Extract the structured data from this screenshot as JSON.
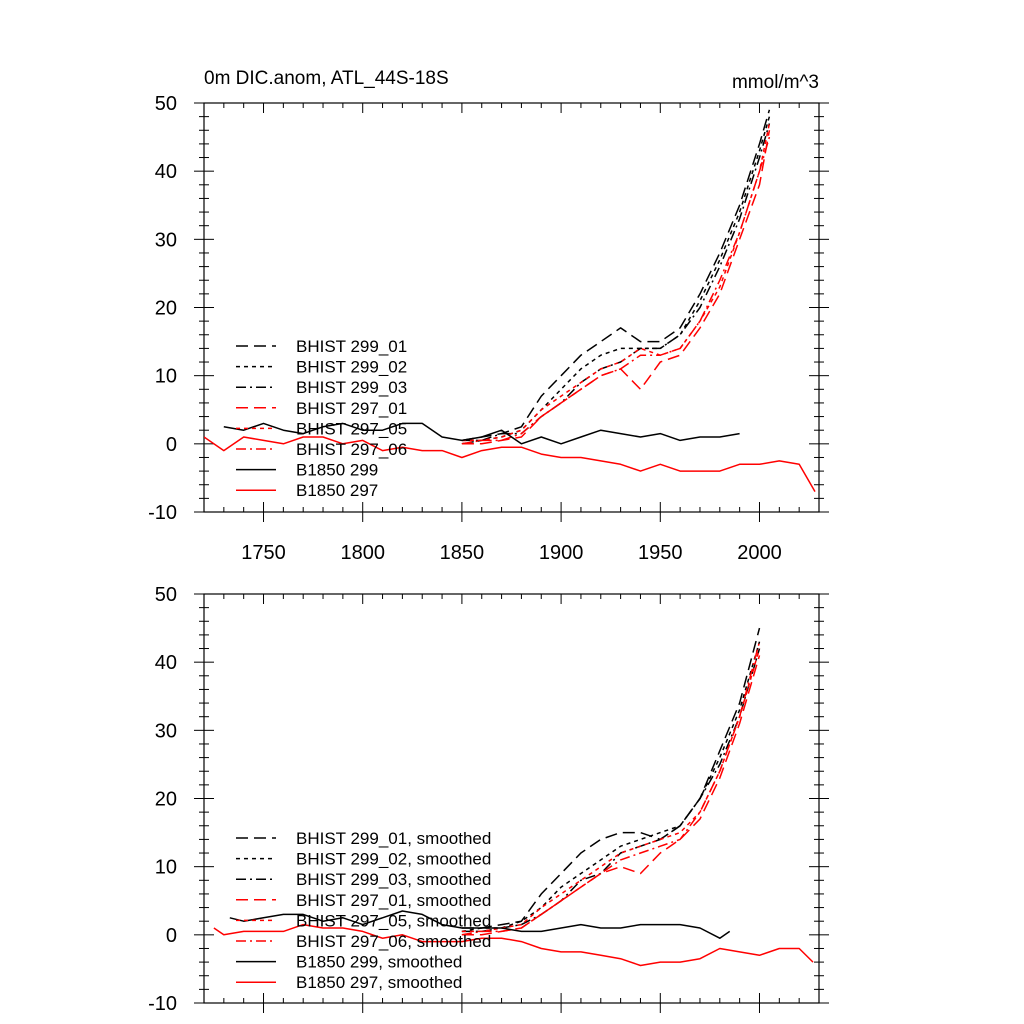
{
  "chart_data": [
    {
      "type": "line",
      "title": "0m DIC.anom, ATL_44S-18S",
      "units": "mmol/m^3",
      "xlim": [
        1720,
        2030
      ],
      "ylim": [
        -10,
        50
      ],
      "xticks": [
        1750,
        1800,
        1850,
        1900,
        1950,
        2000
      ],
      "yticks": [
        -10,
        0,
        10,
        20,
        30,
        40,
        50
      ],
      "x_tick_labels_shown": true,
      "legend_position": "middle-left",
      "series": [
        {
          "name": "BHIST 299_01",
          "color": "#000000",
          "dash": "long-dash",
          "x": [
            1850,
            1860,
            1870,
            1880,
            1890,
            1900,
            1910,
            1920,
            1930,
            1940,
            1950,
            1960,
            1970,
            1980,
            1990,
            2000,
            2005
          ],
          "y": [
            0.5,
            1,
            1.5,
            2.5,
            7,
            10,
            13,
            15,
            17,
            15,
            15,
            17,
            22,
            28,
            35,
            44,
            49
          ]
        },
        {
          "name": "BHIST 299_02",
          "color": "#000000",
          "dash": "short-dash",
          "x": [
            1850,
            1860,
            1870,
            1880,
            1890,
            1900,
            1910,
            1920,
            1930,
            1940,
            1950,
            1960,
            1970,
            1980,
            1990,
            2000,
            2005
          ],
          "y": [
            0,
            0.5,
            1,
            2,
            5,
            8,
            11,
            13,
            14,
            14,
            14,
            16,
            21,
            27,
            34,
            43,
            48
          ]
        },
        {
          "name": "BHIST 299_03",
          "color": "#000000",
          "dash": "dash-dot",
          "x": [
            1850,
            1860,
            1870,
            1880,
            1890,
            1900,
            1910,
            1920,
            1930,
            1940,
            1950,
            1960,
            1970,
            1980,
            1990,
            2000,
            2005
          ],
          "y": [
            0.5,
            0.5,
            1.5,
            1.5,
            4,
            6,
            9,
            11,
            12,
            14,
            14,
            16,
            20,
            26,
            33,
            42,
            47
          ]
        },
        {
          "name": "BHIST 297_01",
          "color": "#ff0000",
          "dash": "long-dash",
          "x": [
            1850,
            1860,
            1870,
            1880,
            1890,
            1900,
            1910,
            1920,
            1930,
            1940,
            1950,
            1960,
            1970,
            1980,
            1990,
            2000,
            2005
          ],
          "y": [
            0,
            0,
            0.5,
            1,
            4,
            6,
            8,
            10,
            11,
            8,
            12,
            13,
            17,
            22,
            30,
            38,
            46
          ]
        },
        {
          "name": "BHIST 297_05",
          "color": "#ff0000",
          "dash": "short-dash",
          "x": [
            1850,
            1860,
            1870,
            1880,
            1890,
            1900,
            1910,
            1920,
            1930,
            1940,
            1950,
            1960,
            1970,
            1980,
            1990,
            2000,
            2005
          ],
          "y": [
            0.5,
            0.5,
            1,
            2,
            5,
            7,
            9,
            11,
            12,
            14,
            13,
            14,
            18,
            23,
            31,
            40,
            47
          ]
        },
        {
          "name": "BHIST 297_06",
          "color": "#ff0000",
          "dash": "dash-dot",
          "x": [
            1850,
            1860,
            1870,
            1880,
            1890,
            1900,
            1910,
            1920,
            1930,
            1940,
            1950,
            1960,
            1970,
            1980,
            1990,
            2000,
            2005
          ],
          "y": [
            0,
            0.5,
            0.5,
            1.5,
            4,
            6,
            8,
            10,
            11,
            13,
            13,
            14,
            18,
            24,
            31,
            40,
            45
          ]
        },
        {
          "name": "B1850 299",
          "color": "#000000",
          "dash": "solid",
          "x": [
            1730,
            1740,
            1750,
            1760,
            1770,
            1780,
            1790,
            1800,
            1810,
            1820,
            1830,
            1840,
            1850,
            1860,
            1870,
            1880,
            1890,
            1900,
            1910,
            1920,
            1930,
            1940,
            1950,
            1960,
            1970,
            1980,
            1990
          ],
          "y": [
            2.5,
            2,
            3,
            2,
            1.5,
            2.5,
            3,
            2,
            2,
            3,
            3,
            1,
            0.5,
            1,
            2,
            0,
            1,
            0,
            1,
            2,
            1.5,
            1,
            1.5,
            0.5,
            1,
            1,
            1.5
          ]
        },
        {
          "name": "B1850 297",
          "color": "#ff0000",
          "dash": "solid",
          "x": [
            1720,
            1730,
            1740,
            1750,
            1760,
            1770,
            1780,
            1790,
            1800,
            1810,
            1820,
            1830,
            1840,
            1850,
            1860,
            1870,
            1880,
            1890,
            1900,
            1910,
            1920,
            1930,
            1940,
            1950,
            1960,
            1970,
            1980,
            1990,
            2000,
            2010,
            2020,
            2028
          ],
          "y": [
            1,
            -1,
            1,
            0.5,
            0,
            1,
            1,
            0,
            0.5,
            -1,
            -0.5,
            -1,
            -1,
            -2,
            -1,
            -0.5,
            -0.5,
            -1.5,
            -2,
            -2,
            -2.5,
            -3,
            -4,
            -3,
            -4,
            -4,
            -4,
            -3,
            -3,
            -2.5,
            -3,
            -7
          ]
        }
      ]
    },
    {
      "type": "line",
      "title": "",
      "units": "",
      "xlim": [
        1720,
        2030
      ],
      "ylim": [
        -10,
        50
      ],
      "xticks": [
        1750,
        1800,
        1850,
        1900,
        1950,
        2000
      ],
      "yticks": [
        -10,
        0,
        10,
        20,
        30,
        40,
        50
      ],
      "x_tick_labels_shown": false,
      "legend_position": "bottom-left",
      "series": [
        {
          "name": "BHIST 299_01, smoothed",
          "color": "#000000",
          "dash": "long-dash",
          "x": [
            1850,
            1860,
            1870,
            1880,
            1890,
            1900,
            1910,
            1920,
            1930,
            1940,
            1950,
            1960,
            1970,
            1980,
            1990,
            2000
          ],
          "y": [
            1,
            1,
            1.5,
            2,
            6,
            9,
            12,
            14,
            15,
            15,
            14,
            16,
            20,
            27,
            34,
            45
          ]
        },
        {
          "name": "BHIST 299_02, smoothed",
          "color": "#000000",
          "dash": "short-dash",
          "x": [
            1850,
            1860,
            1870,
            1880,
            1890,
            1900,
            1910,
            1920,
            1930,
            1940,
            1950,
            1960,
            1970,
            1980,
            1990,
            2000
          ],
          "y": [
            0.5,
            1,
            1,
            2,
            4,
            7,
            9,
            11,
            13,
            14,
            15,
            16,
            20,
            26,
            33,
            43
          ]
        },
        {
          "name": "BHIST 299_03, smoothed",
          "color": "#000000",
          "dash": "dash-dot",
          "x": [
            1850,
            1860,
            1870,
            1880,
            1890,
            1900,
            1910,
            1920,
            1930,
            1940,
            1950,
            1960,
            1970,
            1980,
            1990,
            2000
          ],
          "y": [
            0.5,
            0.5,
            1,
            1.5,
            3,
            5,
            8,
            9,
            12,
            13,
            14,
            16,
            20,
            25,
            32,
            42
          ]
        },
        {
          "name": "BHIST 297_01, smoothed",
          "color": "#ff0000",
          "dash": "long-dash",
          "x": [
            1850,
            1860,
            1870,
            1880,
            1890,
            1900,
            1910,
            1920,
            1930,
            1940,
            1950,
            1960,
            1970,
            1980,
            1990,
            2000
          ],
          "y": [
            0,
            0,
            0.5,
            1,
            3,
            5,
            7,
            9,
            10,
            9,
            12,
            14,
            17,
            23,
            31,
            41
          ]
        },
        {
          "name": "BHIST 297_05, smoothed",
          "color": "#ff0000",
          "dash": "short-dash",
          "x": [
            1850,
            1860,
            1870,
            1880,
            1890,
            1900,
            1910,
            1920,
            1930,
            1940,
            1950,
            1960,
            1970,
            1980,
            1990,
            2000
          ],
          "y": [
            0.5,
            0.5,
            1,
            1.5,
            4,
            6,
            8,
            10,
            12,
            13,
            14,
            15,
            18,
            24,
            32,
            42
          ]
        },
        {
          "name": "BHIST 297_06, smoothed",
          "color": "#ff0000",
          "dash": "dash-dot",
          "x": [
            1850,
            1860,
            1870,
            1880,
            1890,
            1900,
            1910,
            1920,
            1930,
            1940,
            1950,
            1960,
            1970,
            1980,
            1990,
            2000
          ],
          "y": [
            0,
            0.5,
            0.5,
            1,
            3,
            5,
            7,
            9,
            11,
            12,
            13,
            14,
            18,
            24,
            32,
            43
          ]
        },
        {
          "name": "B1850 299, smoothed",
          "color": "#000000",
          "dash": "solid",
          "x": [
            1733,
            1740,
            1750,
            1760,
            1770,
            1780,
            1790,
            1800,
            1810,
            1820,
            1830,
            1840,
            1850,
            1860,
            1870,
            1880,
            1890,
            1900,
            1910,
            1920,
            1930,
            1940,
            1950,
            1960,
            1970,
            1980,
            1985
          ],
          "y": [
            2.5,
            2,
            2.5,
            3,
            3,
            2,
            2.5,
            1.5,
            2.5,
            3.5,
            3,
            1.5,
            1,
            1,
            1,
            0.5,
            0.5,
            1,
            1.5,
            1,
            1,
            1.5,
            1.5,
            1.5,
            1,
            -0.5,
            0.5
          ]
        },
        {
          "name": "B1850 297, smoothed",
          "color": "#ff0000",
          "dash": "solid",
          "x": [
            1725,
            1730,
            1740,
            1750,
            1760,
            1770,
            1780,
            1790,
            1800,
            1810,
            1820,
            1830,
            1840,
            1850,
            1860,
            1870,
            1880,
            1890,
            1900,
            1910,
            1920,
            1930,
            1940,
            1950,
            1960,
            1970,
            1980,
            1990,
            2000,
            2010,
            2020,
            2027
          ],
          "y": [
            1,
            0,
            0.5,
            0.5,
            0.5,
            1.5,
            1,
            1,
            0.5,
            -0.5,
            0,
            -1,
            -1,
            -1,
            -0.5,
            -0.5,
            -1,
            -2,
            -2.5,
            -2.5,
            -3,
            -3.5,
            -4.5,
            -4,
            -4,
            -3.5,
            -2,
            -2.5,
            -3,
            -2,
            -2,
            -4
          ]
        }
      ]
    }
  ]
}
